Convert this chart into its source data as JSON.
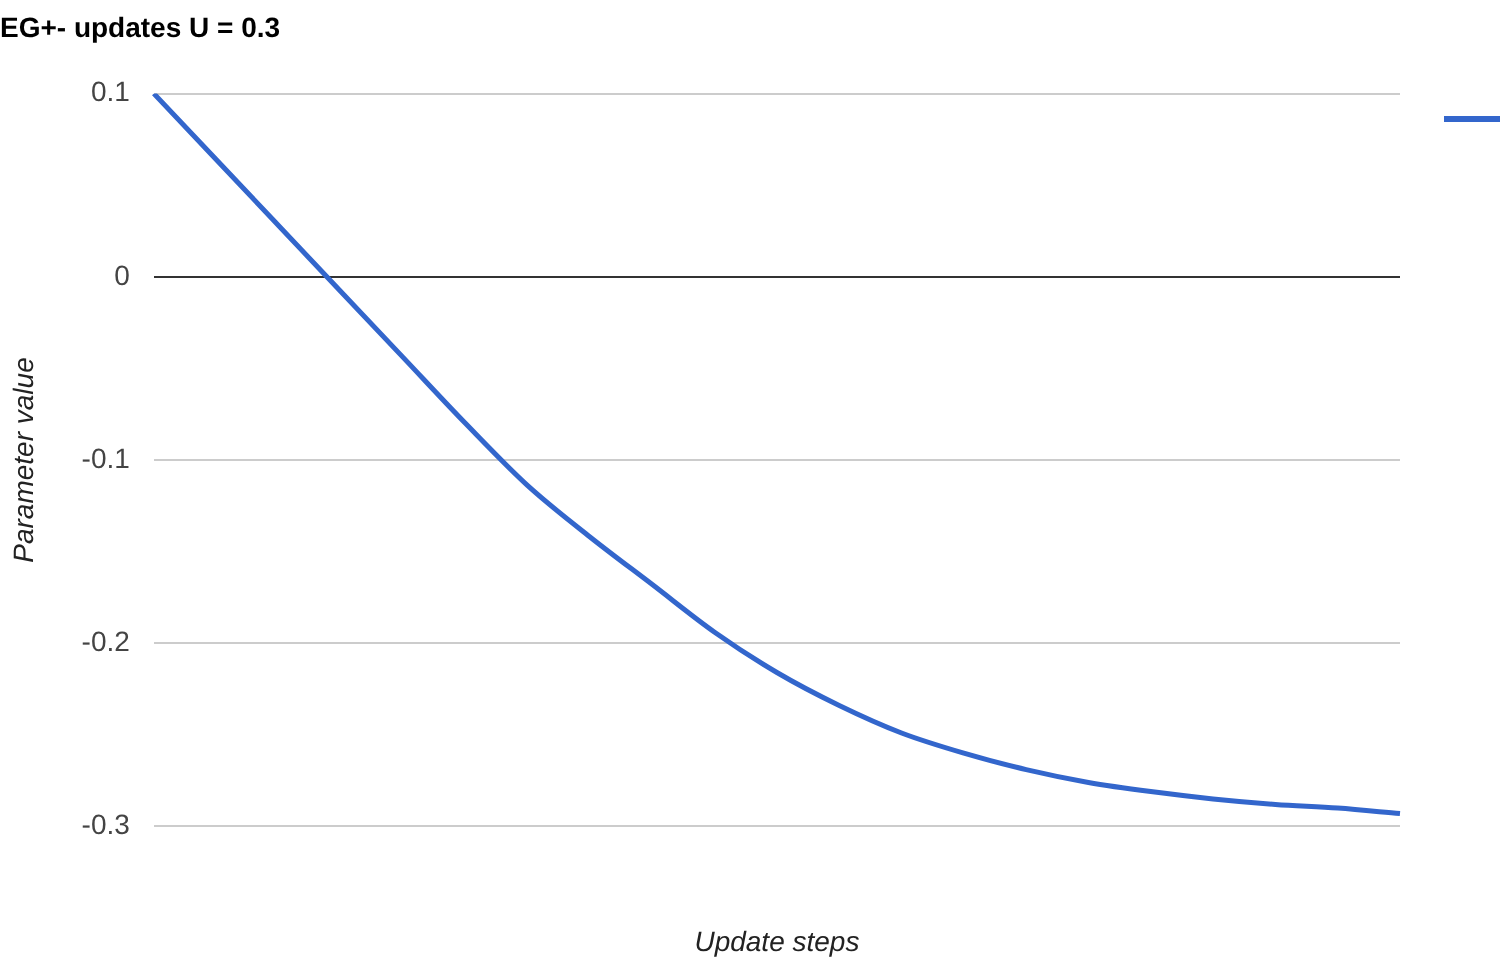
{
  "chart_data": {
    "type": "line",
    "title": "EG+- updates U = 0.3",
    "xlabel": "Update steps",
    "ylabel": "Parameter value",
    "categories": [
      null,
      null,
      null,
      null,
      null,
      null,
      null,
      null,
      null,
      null,
      null,
      null,
      null,
      null,
      null,
      null,
      null,
      null,
      null,
      null,
      null
    ],
    "series": [
      {
        "color": "#3366cc",
        "values": [
          0.1,
          0.064,
          0.028,
          -0.008,
          -0.044,
          -0.08,
          -0.114,
          -0.142,
          -0.168,
          -0.194,
          -0.216,
          -0.234,
          -0.249,
          -0.26,
          -0.269,
          -0.276,
          -0.281,
          -0.285,
          -0.288,
          -0.29,
          -0.293
        ]
      }
    ],
    "ylim": [
      -0.3,
      0.1
    ],
    "yticks": [
      -0.3,
      -0.2,
      -0.1,
      0,
      0.1
    ],
    "grid": "y",
    "tick_labels": "y",
    "marker": "none",
    "line_style": "solid",
    "legend": false
  }
}
